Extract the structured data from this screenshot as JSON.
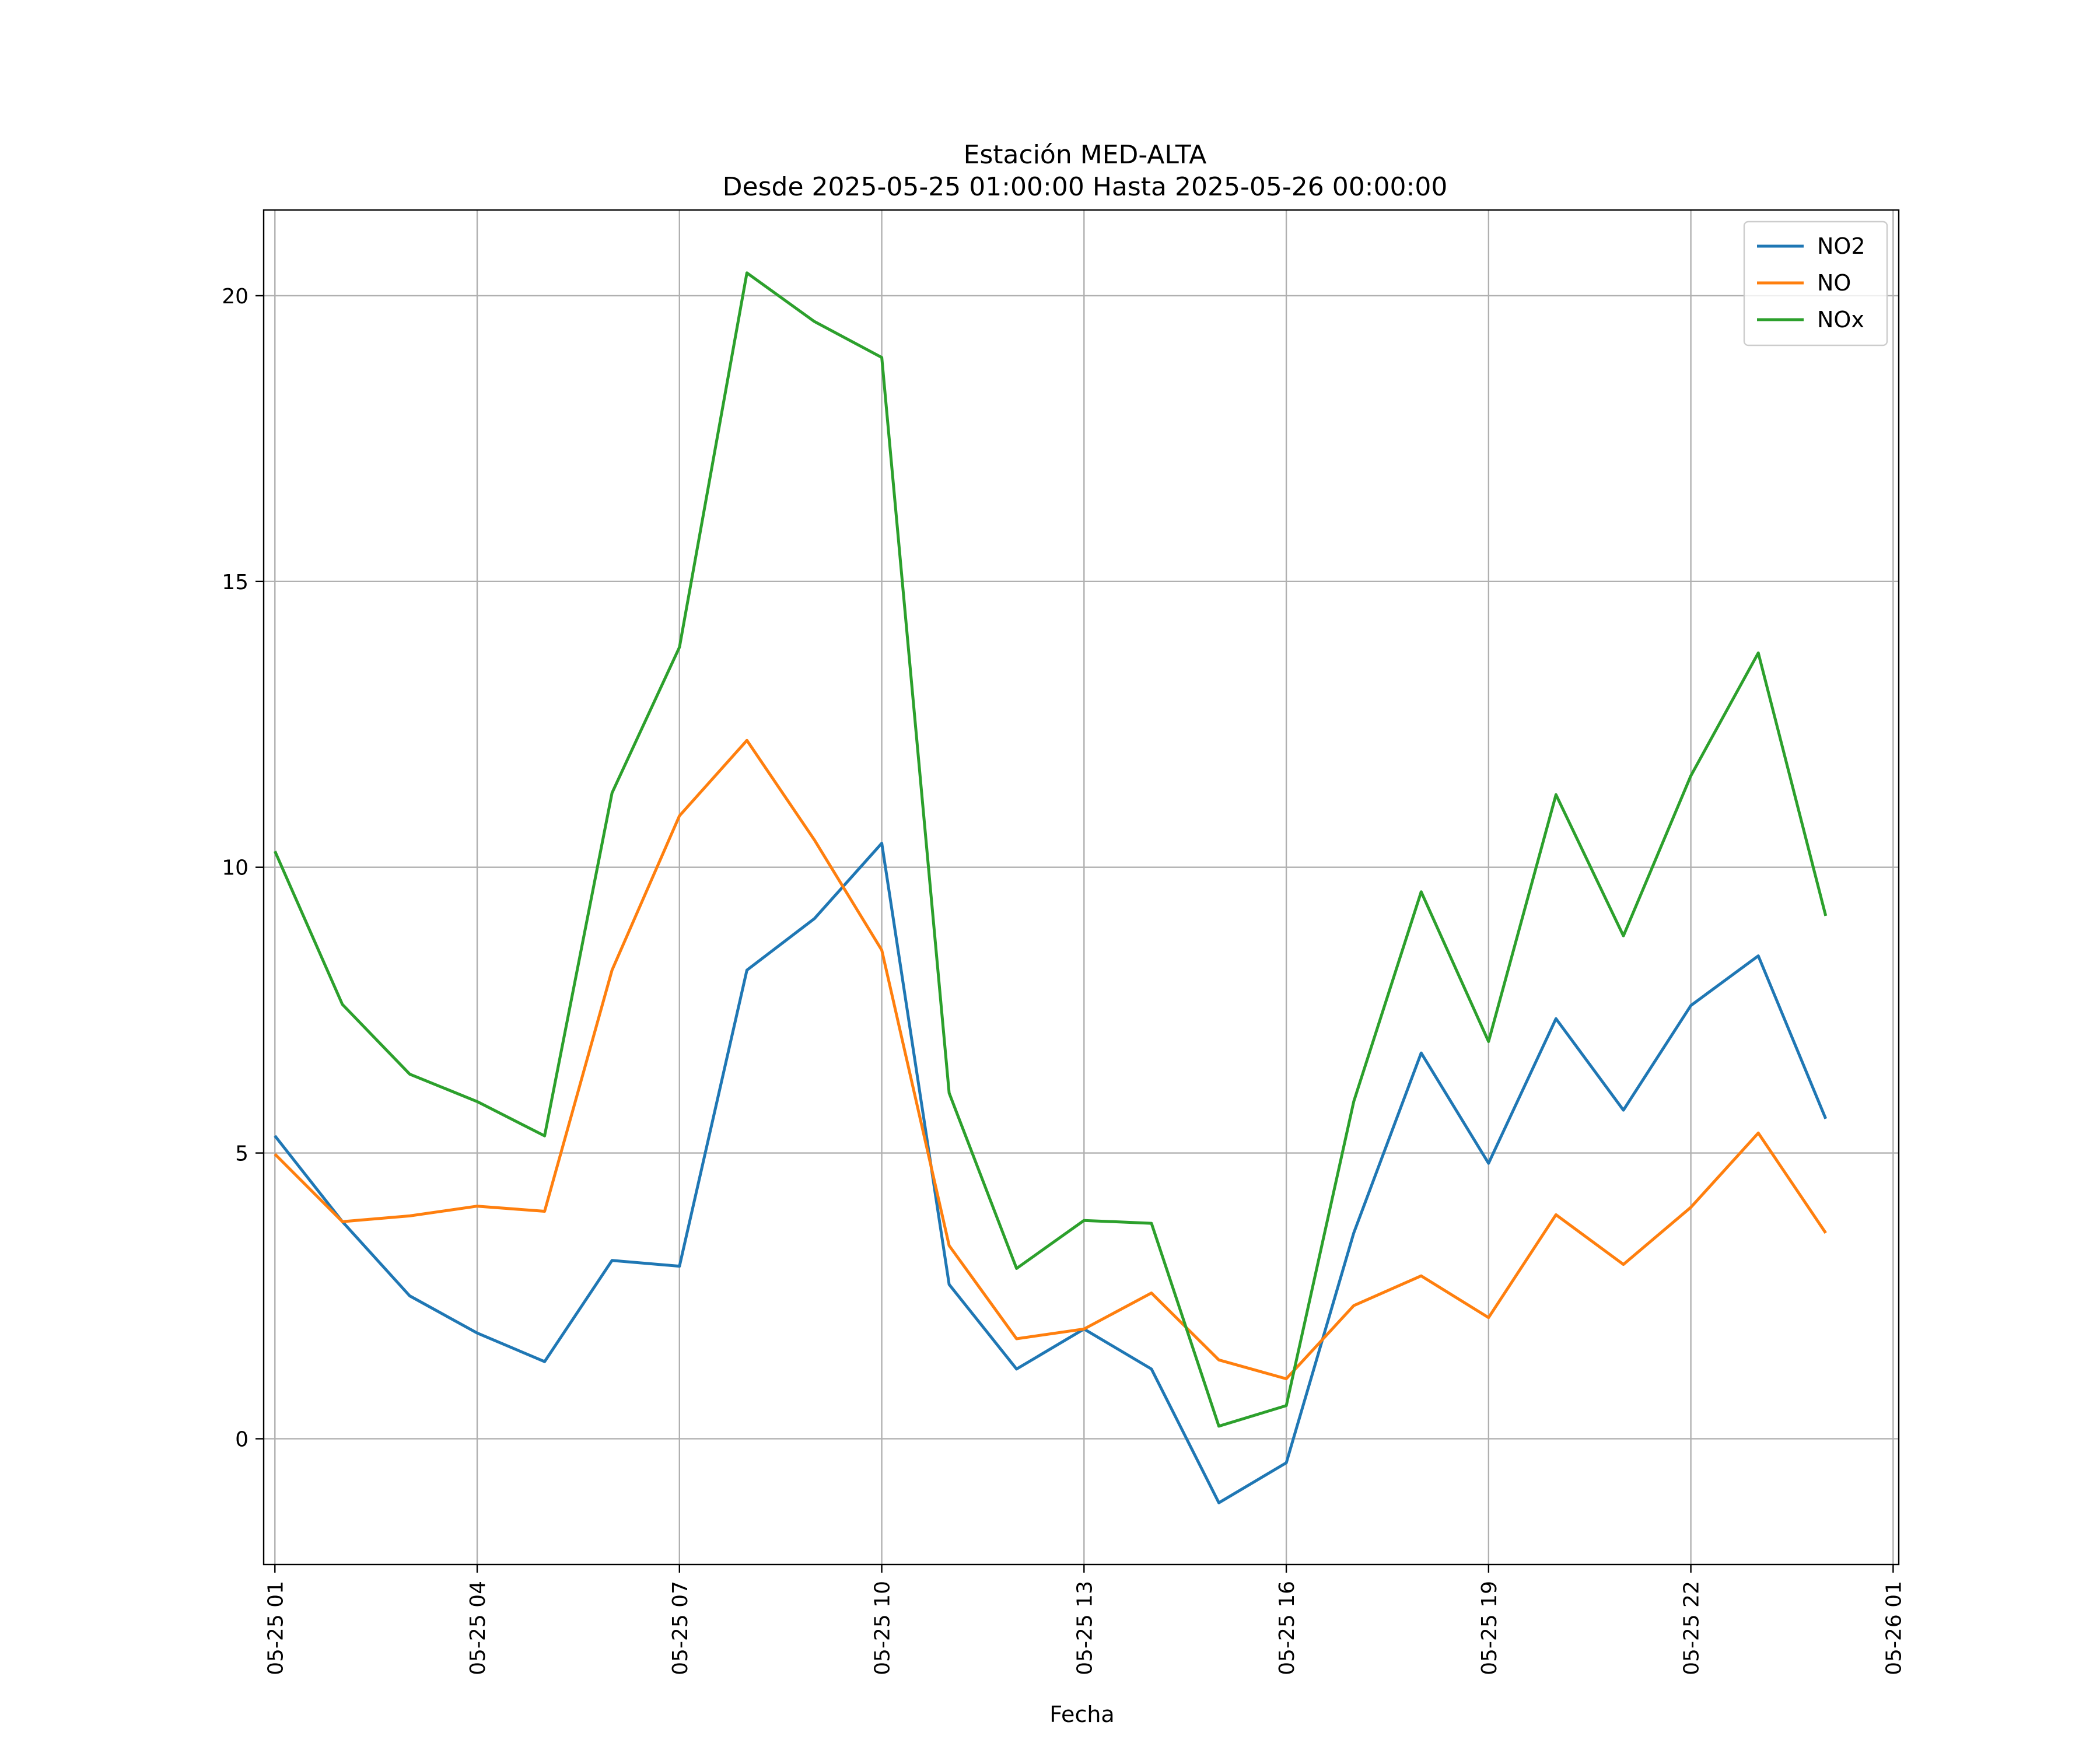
{
  "chart_data": {
    "type": "line",
    "title": "Estación MED-ALTA",
    "subtitle": "Desde 2025-05-25 01:00:00 Hasta 2025-05-26 00:00:00",
    "xlabel": "Fecha",
    "ylabel": "",
    "x": [
      "05-25 01",
      "05-25 02",
      "05-25 03",
      "05-25 04",
      "05-25 05",
      "05-25 06",
      "05-25 07",
      "05-25 08",
      "05-25 09",
      "05-25 10",
      "05-25 11",
      "05-25 12",
      "05-25 13",
      "05-25 14",
      "05-25 15",
      "05-25 16",
      "05-25 17",
      "05-25 18",
      "05-25 19",
      "05-25 20",
      "05-25 21",
      "05-25 22",
      "05-25 23",
      "05-26 00"
    ],
    "x_ticks": [
      "05-25 01",
      "05-25 04",
      "05-25 07",
      "05-25 10",
      "05-25 13",
      "05-25 16",
      "05-25 19",
      "05-25 22",
      "05-26 01"
    ],
    "xlim": [
      "05-25 00:50",
      "05-26 01:05"
    ],
    "ylim": [
      -2.2,
      21.5
    ],
    "y_ticks": [
      0,
      5,
      10,
      15,
      20
    ],
    "grid": true,
    "legend_position": "top-right",
    "series": [
      {
        "name": "NO2",
        "color": "#1f77b4",
        "values": [
          5.3,
          3.8,
          2.5,
          1.85,
          1.35,
          3.12,
          3.02,
          8.2,
          9.1,
          10.42,
          2.7,
          1.22,
          1.92,
          1.22,
          -1.12,
          -0.42,
          3.6,
          6.75,
          4.82,
          7.35,
          5.75,
          7.58,
          8.45,
          5.6
        ]
      },
      {
        "name": "NO",
        "color": "#ff7f0e",
        "values": [
          4.98,
          3.8,
          3.9,
          4.07,
          3.98,
          8.2,
          10.9,
          12.22,
          10.48,
          8.55,
          3.38,
          1.75,
          1.92,
          2.55,
          1.38,
          1.05,
          2.33,
          2.85,
          2.12,
          3.92,
          3.05,
          4.05,
          5.35,
          3.6
        ]
      },
      {
        "name": "NOx",
        "color": "#2ca02c",
        "values": [
          10.28,
          7.6,
          6.38,
          5.9,
          5.3,
          11.3,
          13.85,
          20.4,
          19.55,
          18.92,
          6.05,
          2.98,
          3.82,
          3.77,
          0.22,
          0.58,
          5.9,
          9.57,
          6.95,
          11.27,
          8.8,
          11.6,
          13.75,
          9.15
        ]
      }
    ]
  }
}
